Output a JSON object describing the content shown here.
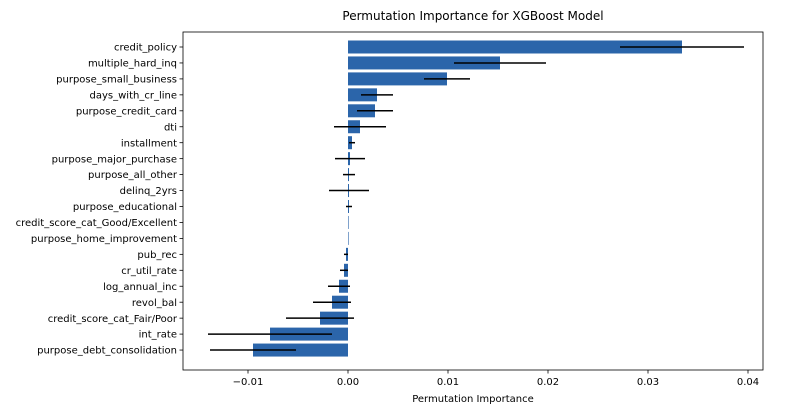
{
  "chart_data": {
    "type": "bar",
    "orientation": "horizontal",
    "title": "Permutation Importance for XGBoost Model",
    "xlabel": "Permutation Importance",
    "ylabel": "",
    "xlim": [
      -0.0165,
      0.0415
    ],
    "x_ticks": [
      -0.01,
      0.0,
      0.01,
      0.02,
      0.03,
      0.04
    ],
    "x_tick_labels": [
      "−0.01",
      "0.00",
      "0.01",
      "0.02",
      "0.03",
      "0.04"
    ],
    "grid": false,
    "bar_color": "#2b65aa",
    "error_color": "#000000",
    "categories": [
      "credit_policy",
      "multiple_hard_inq",
      "purpose_small_business",
      "days_with_cr_line",
      "purpose_credit_card",
      "dti",
      "installment",
      "purpose_major_purchase",
      "purpose_all_other",
      "delinq_2yrs",
      "purpose_educational",
      "credit_score_cat_Good/Excellent",
      "purpose_home_improvement",
      "pub_rec",
      "cr_util_rate",
      "log_annual_inc",
      "revol_bal",
      "credit_score_cat_Fair/Poor",
      "int_rate",
      "purpose_debt_consolidation"
    ],
    "values": [
      0.0334,
      0.0152,
      0.0099,
      0.0029,
      0.0027,
      0.0012,
      0.0004,
      0.0002,
      0.0001,
      0.0001,
      0.0001,
      0.0,
      0.0,
      -0.0002,
      -0.0004,
      -0.0009,
      -0.0016,
      -0.0028,
      -0.0078,
      -0.0095
    ],
    "errors": [
      0.0062,
      0.0046,
      0.0023,
      0.0016,
      0.0018,
      0.0026,
      0.0003,
      0.0015,
      0.0006,
      0.002,
      0.0003,
      0.0,
      0.0,
      0.0002,
      0.0004,
      0.0011,
      0.0019,
      0.0034,
      0.0062,
      0.0043
    ]
  }
}
